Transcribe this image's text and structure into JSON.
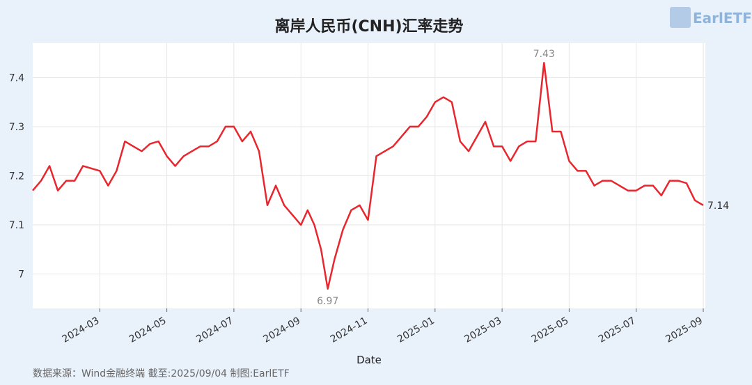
{
  "chart_data": {
    "type": "line",
    "title": "离岸人民币(CNH)汇率走势",
    "xlabel": "Date",
    "source": "数据来源：Wind金融终端 截至:2025/09/04 制图:EarlETF",
    "logo": "EarlETF",
    "x": [
      "2024-01",
      "2024-01",
      "2024-01",
      "2024-01",
      "2024-02",
      "2024-02",
      "2024-02",
      "2024-02",
      "2024-03",
      "2024-03",
      "2024-03",
      "2024-03",
      "2024-04",
      "2024-04",
      "2024-04",
      "2024-04",
      "2024-05",
      "2024-05",
      "2024-05",
      "2024-05",
      "2024-06",
      "2024-06",
      "2024-06",
      "2024-06",
      "2024-07",
      "2024-07",
      "2024-07",
      "2024-07",
      "2024-08",
      "2024-08",
      "2024-08",
      "2024-08",
      "2024-09",
      "2024-09",
      "2024-09",
      "2024-09",
      "2024-09",
      "2024-10",
      "2024-10",
      "2024-10",
      "2024-10",
      "2024-11",
      "2024-11",
      "2024-11",
      "2024-11",
      "2024-12",
      "2024-12",
      "2024-12",
      "2024-12",
      "2025-01",
      "2025-01",
      "2025-01",
      "2025-01",
      "2025-02",
      "2025-02",
      "2025-02",
      "2025-02",
      "2025-03",
      "2025-03",
      "2025-03",
      "2025-03",
      "2025-04",
      "2025-04",
      "2025-04",
      "2025-04",
      "2025-05",
      "2025-05",
      "2025-05",
      "2025-05",
      "2025-06",
      "2025-06",
      "2025-06",
      "2025-06",
      "2025-07",
      "2025-07",
      "2025-07",
      "2025-07",
      "2025-08",
      "2025-08",
      "2025-08",
      "2025-08",
      "2025-09"
    ],
    "series": [
      {
        "name": "CNH",
        "color": "#e8262d",
        "values": [
          7.17,
          7.19,
          7.22,
          7.17,
          7.19,
          7.19,
          7.22,
          7.215,
          7.21,
          7.18,
          7.21,
          7.27,
          7.26,
          7.25,
          7.265,
          7.27,
          7.24,
          7.22,
          7.24,
          7.25,
          7.26,
          7.26,
          7.27,
          7.3,
          7.3,
          7.27,
          7.29,
          7.25,
          7.14,
          7.18,
          7.14,
          7.12,
          7.1,
          7.13,
          7.1,
          7.05,
          6.97,
          7.03,
          7.09,
          7.13,
          7.14,
          7.11,
          7.24,
          7.25,
          7.26,
          7.28,
          7.3,
          7.3,
          7.32,
          7.35,
          7.36,
          7.35,
          7.27,
          7.25,
          7.28,
          7.31,
          7.26,
          7.26,
          7.23,
          7.26,
          7.27,
          7.27,
          7.43,
          7.29,
          7.29,
          7.23,
          7.21,
          7.21,
          7.18,
          7.19,
          7.19,
          7.18,
          7.17,
          7.17,
          7.18,
          7.18,
          7.16,
          7.19,
          7.19,
          7.185,
          7.15,
          7.14
        ]
      }
    ],
    "labeled_points": [
      36,
      62,
      81
    ],
    "xlim": [
      "2024-01",
      "2025-09"
    ],
    "xticks": [
      "2024-03",
      "2024-05",
      "2024-07",
      "2024-09",
      "2024-11",
      "2025-01",
      "2025-03",
      "2025-05",
      "2025-07",
      "2025-09"
    ],
    "ylim": [
      6.93,
      7.47
    ],
    "yticks": [
      7.0,
      7.1,
      7.2,
      7.3,
      7.4
    ],
    "grid": true
  }
}
